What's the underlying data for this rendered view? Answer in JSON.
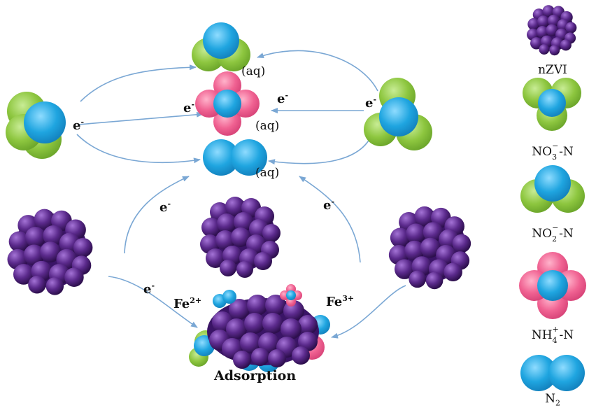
{
  "labels": {
    "e_minus": "e",
    "minus": "-",
    "aq": "(aq)",
    "fe2_base": "Fe",
    "fe2_sup": "2+",
    "fe3_base": "Fe",
    "fe3_sup": "3+",
    "adsorption": "Adsorption"
  },
  "legend": {
    "nzvi": "nZVI",
    "no3_base": "NO",
    "no3_sub": "3",
    "no3_sup": "−",
    "no3_suffix": "-N",
    "no2_base": "NO",
    "no2_sub": "2",
    "no2_sup": "−",
    "no2_suffix": "-N",
    "nh4_base": "NH",
    "nh4_sub": "4",
    "nh4_sup": "+",
    "nh4_suffix": "-N",
    "n2_base": "N",
    "n2_sub": "2"
  },
  "colors": {
    "oxygen": "#8dc63f",
    "nitrogen": "#1fa5e0",
    "hydrogen": "#f06292",
    "iron": "#5b2a8c",
    "arrow": "#7aa7d4"
  }
}
